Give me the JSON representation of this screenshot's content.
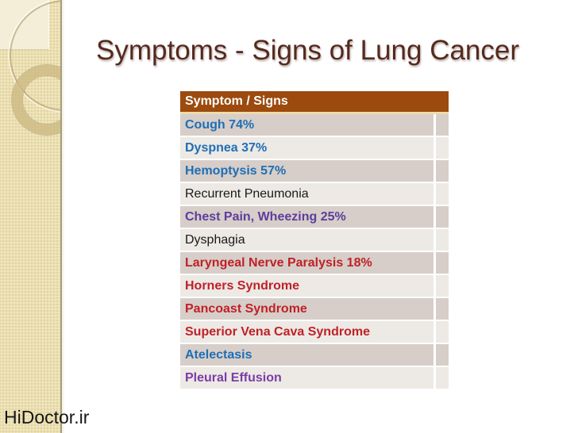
{
  "slide": {
    "title": "Symptoms - Signs of Lung Cancer",
    "watermark": "HiDoctor.ir"
  },
  "table": {
    "header": "Symptom / Signs",
    "rows": [
      {
        "label": "Cough 74%",
        "color": "blue",
        "bold": true
      },
      {
        "label": "Dyspnea 37%",
        "color": "blue",
        "bold": true
      },
      {
        "label": "Hemoptysis 57%",
        "color": "blue",
        "bold": true
      },
      {
        "label": "Recurrent Pneumonia",
        "color": "black",
        "bold": false
      },
      {
        "label": "Chest Pain, Wheezing 25%",
        "color": "purple",
        "bold": true
      },
      {
        "label": "Dysphagia",
        "color": "black",
        "bold": false
      },
      {
        "label": "Laryngeal Nerve Paralysis 18%",
        "color": "red",
        "bold": true
      },
      {
        "label": "Horners Syndrome",
        "color": "red",
        "bold": true
      },
      {
        "label": "Pancoast Syndrome",
        "color": "red",
        "bold": true
      },
      {
        "label": "Superior Vena Cava Syndrome",
        "color": "red",
        "bold": true
      },
      {
        "label": "Atelectasis",
        "color": "blue",
        "bold": true
      },
      {
        "label": "Pleural Effusion",
        "color": "violet",
        "bold": true
      }
    ]
  },
  "colors": {
    "header_bg": "#9c4a0e",
    "header_text": "#ffffff",
    "header_underline": "#eedbab",
    "row_dark": "#d7cec9",
    "row_light": "#ede9e5",
    "title": "#552a1e",
    "sidebar_base": "#ebdfb0",
    "sidebar_square": "#f4eed9",
    "text": {
      "blue": "#1e6fb5",
      "red": "#bf2127",
      "purple": "#5d3d9c",
      "violet": "#7a3da6",
      "black": "#1a1a1a"
    }
  }
}
